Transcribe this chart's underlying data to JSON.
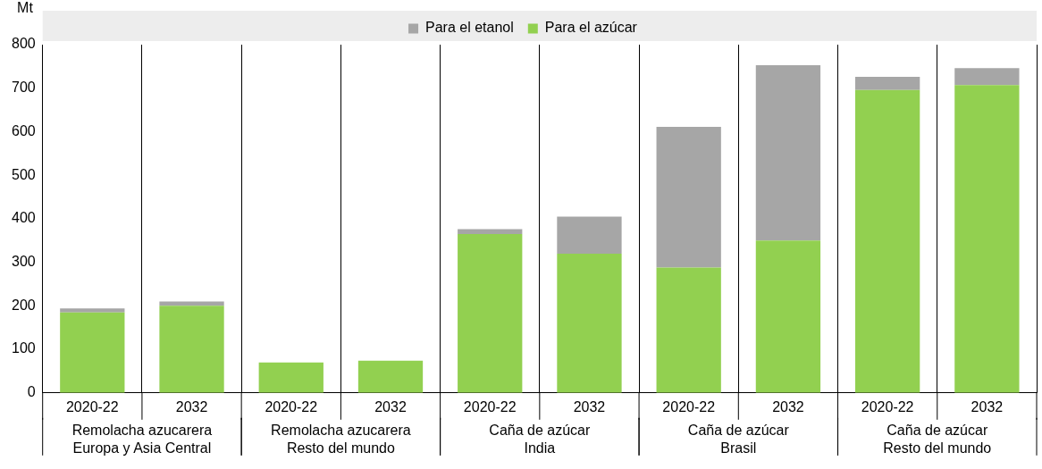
{
  "chart_data": {
    "type": "bar",
    "ylabel": "Mt",
    "stacked": true,
    "categories": [
      "2020-22",
      "2032",
      "2020-22",
      "2032",
      "2020-22",
      "2032",
      "2020-22",
      "2032",
      "2020-22",
      "2032"
    ],
    "series": [
      {
        "name": "Para el azúcar",
        "color": "#92d050",
        "values": [
          185,
          200,
          70,
          74,
          365,
          320,
          288,
          350,
          696,
          707
        ]
      },
      {
        "name": "Para el etanol",
        "color": "#a6a6a6",
        "values": [
          9,
          10,
          0,
          0,
          11,
          85,
          323,
          403,
          30,
          39
        ]
      }
    ],
    "ylim": [
      0,
      800
    ],
    "yticks": [
      0,
      100,
      200,
      300,
      400,
      500,
      600,
      700,
      800
    ],
    "grid": "x",
    "legend": "top",
    "annotations": [
      "Remolacha azucarera\nEuropa y Asia Central",
      "Remolacha azucarera\nResto del mundo",
      "Caña de azúcar\nIndia",
      "Caña de azúcar\nBrasil",
      "Caña de azúcar\nResto del mundo"
    ]
  }
}
